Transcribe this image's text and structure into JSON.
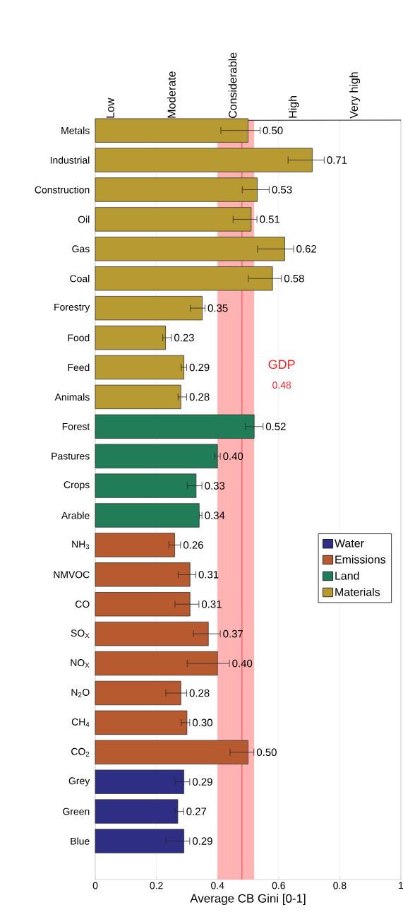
{
  "chart_data": {
    "type": "bar",
    "orientation": "horizontal",
    "xlabel": "Average CB Gini [0-1]",
    "categories": [
      "Metals",
      "Industrial",
      "Construction",
      "Oil",
      "Gas",
      "Coal",
      "Forestry",
      "Food",
      "Feed",
      "Animals",
      "Forest",
      "Pastures",
      "Crops",
      "Arable",
      "NH$_{3}$",
      "NMVOC",
      "CO",
      "SO$_{X}$",
      "NO$_{X}$",
      "N$_{2}$O",
      "CH$_{4}$",
      "CO$_{2}$",
      "Grey",
      "Green",
      "Blue"
    ],
    "series": [
      {
        "name": "Water",
        "color": "#2e2e84",
        "values": [
          null,
          null,
          null,
          null,
          null,
          null,
          null,
          null,
          null,
          null,
          null,
          null,
          null,
          null,
          null,
          null,
          null,
          null,
          null,
          null,
          null,
          null,
          0.29,
          0.27,
          0.29
        ],
        "errors": [
          null,
          null,
          null,
          null,
          null,
          null,
          null,
          null,
          null,
          null,
          null,
          null,
          null,
          null,
          null,
          null,
          null,
          null,
          null,
          null,
          null,
          null,
          [
            0.26,
            0.31
          ],
          [
            0.26,
            0.29
          ],
          [
            0.23,
            0.31
          ]
        ],
        "value_labels": [
          null,
          null,
          null,
          null,
          null,
          null,
          null,
          null,
          null,
          null,
          null,
          null,
          null,
          null,
          null,
          null,
          null,
          null,
          null,
          null,
          null,
          null,
          "0.29",
          "0.27",
          "0.29"
        ]
      },
      {
        "name": "Emissions",
        "color": "#b85a30",
        "values": [
          null,
          null,
          null,
          null,
          null,
          null,
          null,
          null,
          null,
          null,
          null,
          null,
          null,
          null,
          0.26,
          0.31,
          0.31,
          0.37,
          0.4,
          0.28,
          0.3,
          0.5,
          null,
          null,
          null
        ],
        "errors": [
          null,
          null,
          null,
          null,
          null,
          null,
          null,
          null,
          null,
          null,
          null,
          null,
          null,
          null,
          [
            0.24,
            0.28
          ],
          [
            0.27,
            0.33
          ],
          [
            0.26,
            0.34
          ],
          [
            0.32,
            0.41
          ],
          [
            0.3,
            0.44
          ],
          [
            0.23,
            0.3
          ],
          [
            0.28,
            0.31
          ],
          [
            0.44,
            0.52
          ],
          null,
          null,
          null
        ],
        "value_labels": [
          null,
          null,
          null,
          null,
          null,
          null,
          null,
          null,
          null,
          null,
          null,
          null,
          null,
          null,
          "0.26",
          "0.31",
          "0.31",
          "0.37",
          "0.40",
          "0.28",
          "0.30",
          "0.50",
          null,
          null,
          null
        ]
      },
      {
        "name": "Land",
        "color": "#217d58",
        "values": [
          null,
          null,
          null,
          null,
          null,
          null,
          null,
          null,
          null,
          null,
          0.52,
          0.4,
          0.33,
          0.34,
          null,
          null,
          null,
          null,
          null,
          null,
          null,
          null,
          null,
          null,
          null
        ],
        "errors": [
          null,
          null,
          null,
          null,
          null,
          null,
          null,
          null,
          null,
          null,
          [
            0.49,
            0.55
          ],
          [
            0.39,
            0.41
          ],
          [
            0.3,
            0.35
          ],
          [
            0.34,
            0.35
          ],
          null,
          null,
          null,
          null,
          null,
          null,
          null,
          null,
          null,
          null,
          null
        ],
        "value_labels": [
          null,
          null,
          null,
          null,
          null,
          null,
          null,
          null,
          null,
          null,
          "0.52",
          "0.40",
          "0.33",
          "0.34",
          null,
          null,
          null,
          null,
          null,
          null,
          null,
          null,
          null,
          null,
          null
        ]
      },
      {
        "name": "Materials",
        "color": "#b89a33",
        "values": [
          0.5,
          0.71,
          0.53,
          0.51,
          0.62,
          0.58,
          0.35,
          0.23,
          0.29,
          0.28,
          null,
          null,
          null,
          null,
          null,
          null,
          null,
          null,
          null,
          null,
          null,
          null,
          null,
          null,
          null
        ],
        "errors": [
          [
            0.41,
            0.54
          ],
          [
            0.63,
            0.75
          ],
          [
            0.48,
            0.57
          ],
          [
            0.45,
            0.53
          ],
          [
            0.53,
            0.65
          ],
          [
            0.5,
            0.61
          ],
          [
            0.31,
            0.36
          ],
          [
            0.22,
            0.25
          ],
          [
            0.28,
            0.3
          ],
          [
            0.27,
            0.3
          ],
          null,
          null,
          null,
          null,
          null,
          null,
          null,
          null,
          null,
          null,
          null,
          null,
          null,
          null,
          null
        ],
        "value_labels": [
          "0.50",
          "0.71",
          "0.53",
          "0.51",
          "0.62",
          "0.58",
          "0.35",
          "0.23",
          "0.29",
          "0.28",
          null,
          null,
          null,
          null,
          null,
          null,
          null,
          null,
          null,
          null,
          null,
          null,
          null,
          null,
          null
        ]
      }
    ],
    "xlim": [
      0,
      1
    ],
    "xticks": [
      0,
      0.2,
      0.4,
      0.6,
      0.8,
      1
    ],
    "ref_lines": [
      {
        "axis": "x",
        "value": 0.48,
        "label": "GDP",
        "color": "#ff2222"
      }
    ],
    "bands": [
      {
        "axis": "x",
        "from": 0.4,
        "to": 0.52,
        "color": "#ffb3b3"
      }
    ],
    "annotations": [
      "0.48",
      "Low",
      "Moderate",
      "Considerable",
      "High",
      "Very high"
    ],
    "grid": "x",
    "legend": "right"
  }
}
